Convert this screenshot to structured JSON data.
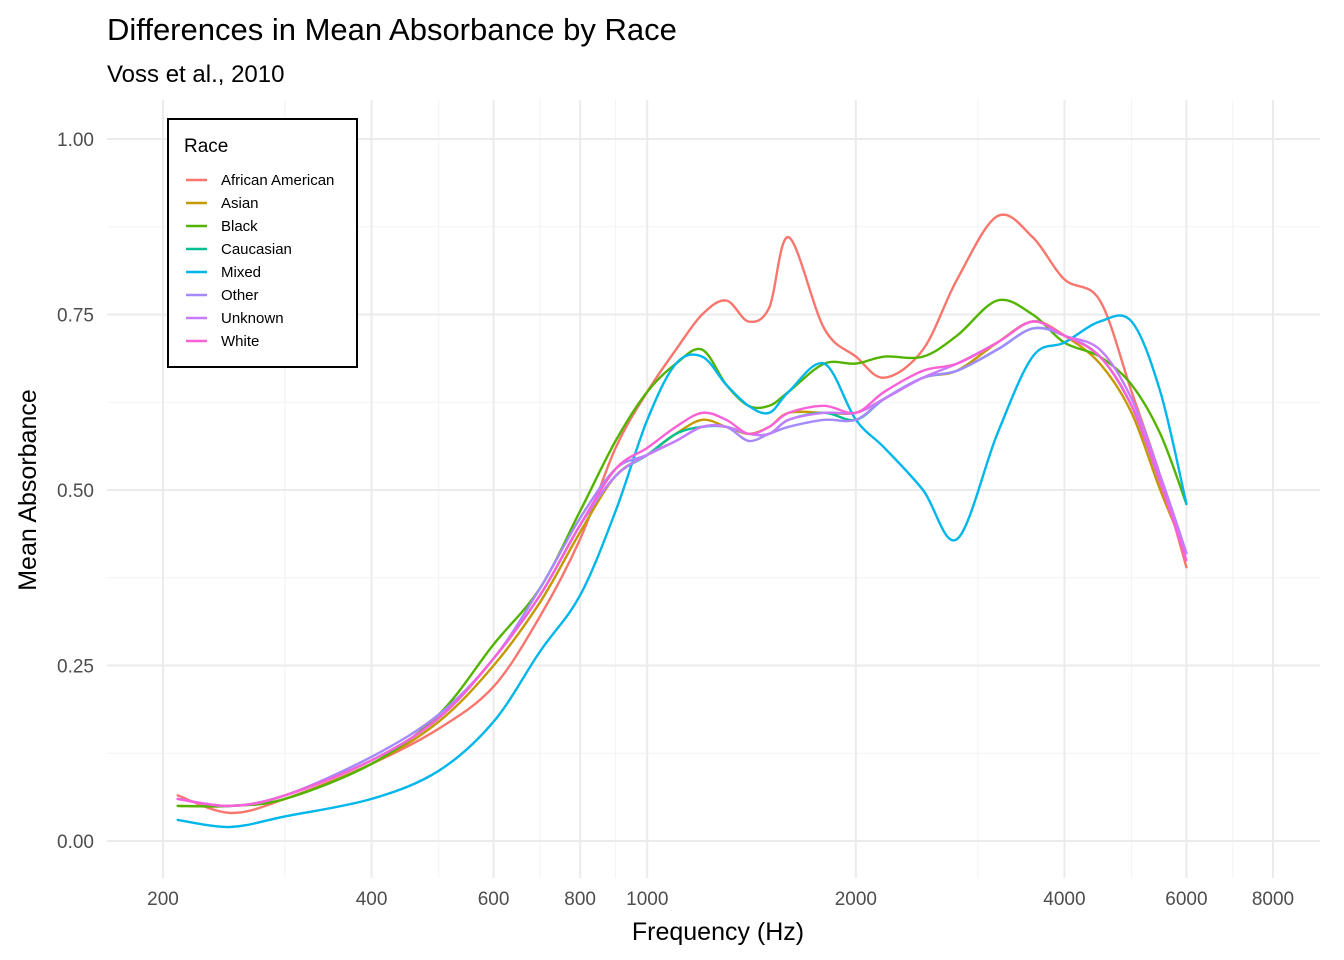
{
  "chart_data": {
    "type": "line",
    "title": "Differences in Mean Absorbance by Race",
    "subtitle": "Voss et al., 2010",
    "xlabel": "Frequency (Hz)",
    "ylabel": "Mean Absorbance",
    "x_scale": "log10",
    "xlim": [
      200,
      8000
    ],
    "ylim": [
      0,
      1
    ],
    "x_ticks": [
      200,
      400,
      600,
      800,
      1000,
      2000,
      4000,
      6000,
      8000
    ],
    "x_tick_labels": [
      "200",
      "400",
      "600",
      "800",
      "1000",
      "2000",
      "4000",
      "6000",
      "8000"
    ],
    "y_ticks": [
      0,
      0.25,
      0.5,
      0.75,
      1
    ],
    "y_tick_labels": [
      "0.00",
      "0.25",
      "0.50",
      "0.75",
      "1.00"
    ],
    "grid": true,
    "legend": {
      "title": "Race",
      "position": "top-left"
    },
    "x": [
      210,
      250,
      300,
      400,
      500,
      600,
      700,
      800,
      900,
      1000,
      1100,
      1200,
      1300,
      1400,
      1500,
      1600,
      1800,
      2000,
      2200,
      2500,
      2800,
      3200,
      3600,
      4000,
      4500,
      5000,
      5500,
      6000
    ],
    "series": [
      {
        "name": "African American",
        "color": "#F8766D",
        "values": [
          0.065,
          0.04,
          0.06,
          0.11,
          0.16,
          0.22,
          0.32,
          0.43,
          0.56,
          0.64,
          0.7,
          0.75,
          0.77,
          0.74,
          0.76,
          0.86,
          0.73,
          0.69,
          0.66,
          0.7,
          0.8,
          0.89,
          0.86,
          0.8,
          0.77,
          0.64,
          0.52,
          0.39
        ]
      },
      {
        "name": "Asian",
        "color": "#C49A00",
        "values": [
          0.05,
          0.05,
          0.06,
          0.11,
          0.17,
          0.25,
          0.34,
          0.44,
          0.52,
          0.55,
          0.58,
          0.6,
          0.59,
          0.58,
          0.59,
          0.61,
          0.61,
          0.61,
          0.63,
          0.66,
          0.67,
          0.71,
          0.74,
          0.72,
          0.68,
          0.61,
          0.5,
          0.41
        ]
      },
      {
        "name": "Black",
        "color": "#53B400",
        "values": [
          0.05,
          0.05,
          0.06,
          0.11,
          0.18,
          0.28,
          0.36,
          0.47,
          0.57,
          0.64,
          0.68,
          0.7,
          0.65,
          0.62,
          0.62,
          0.64,
          0.68,
          0.68,
          0.69,
          0.69,
          0.72,
          0.77,
          0.75,
          0.71,
          0.69,
          0.65,
          0.58,
          0.48
        ]
      },
      {
        "name": "Caucasian",
        "color": "#00C094",
        "values": [
          0.06,
          0.05,
          0.065,
          0.115,
          0.175,
          0.26,
          0.35,
          0.45,
          0.52,
          0.55,
          0.58,
          0.59,
          0.59,
          0.58,
          0.58,
          0.6,
          0.61,
          0.6,
          0.63,
          0.66,
          0.67,
          0.7,
          0.73,
          0.72,
          0.69,
          0.62,
          0.51,
          0.41
        ]
      },
      {
        "name": "Mixed",
        "color": "#00B6EB",
        "values": [
          0.03,
          0.02,
          0.035,
          0.06,
          0.1,
          0.17,
          0.27,
          0.35,
          0.47,
          0.6,
          0.68,
          0.69,
          0.65,
          0.62,
          0.61,
          0.64,
          0.68,
          0.6,
          0.56,
          0.5,
          0.43,
          0.58,
          0.69,
          0.71,
          0.74,
          0.74,
          0.64,
          0.48
        ]
      },
      {
        "name": "Other",
        "color": "#A58AFF",
        "values": [
          0.06,
          0.05,
          0.065,
          0.12,
          0.18,
          0.26,
          0.36,
          0.46,
          0.53,
          0.55,
          0.57,
          0.59,
          0.59,
          0.57,
          0.58,
          0.59,
          0.6,
          0.6,
          0.63,
          0.66,
          0.67,
          0.7,
          0.73,
          0.72,
          0.69,
          0.62,
          0.52,
          0.41
        ]
      },
      {
        "name": "Unknown",
        "color": "#C77CFF",
        "values": [
          0.06,
          0.05,
          0.065,
          0.115,
          0.175,
          0.26,
          0.35,
          0.45,
          0.52,
          0.55,
          0.57,
          0.59,
          0.59,
          0.58,
          0.58,
          0.6,
          0.61,
          0.61,
          0.63,
          0.66,
          0.68,
          0.71,
          0.74,
          0.72,
          0.7,
          0.63,
          0.52,
          0.41
        ]
      },
      {
        "name": "White",
        "color": "#FB61D7",
        "values": [
          0.06,
          0.05,
          0.065,
          0.115,
          0.175,
          0.26,
          0.35,
          0.45,
          0.53,
          0.56,
          0.59,
          0.61,
          0.6,
          0.58,
          0.59,
          0.61,
          0.62,
          0.61,
          0.64,
          0.67,
          0.68,
          0.71,
          0.74,
          0.72,
          0.69,
          0.62,
          0.51,
          0.4
        ]
      }
    ]
  }
}
